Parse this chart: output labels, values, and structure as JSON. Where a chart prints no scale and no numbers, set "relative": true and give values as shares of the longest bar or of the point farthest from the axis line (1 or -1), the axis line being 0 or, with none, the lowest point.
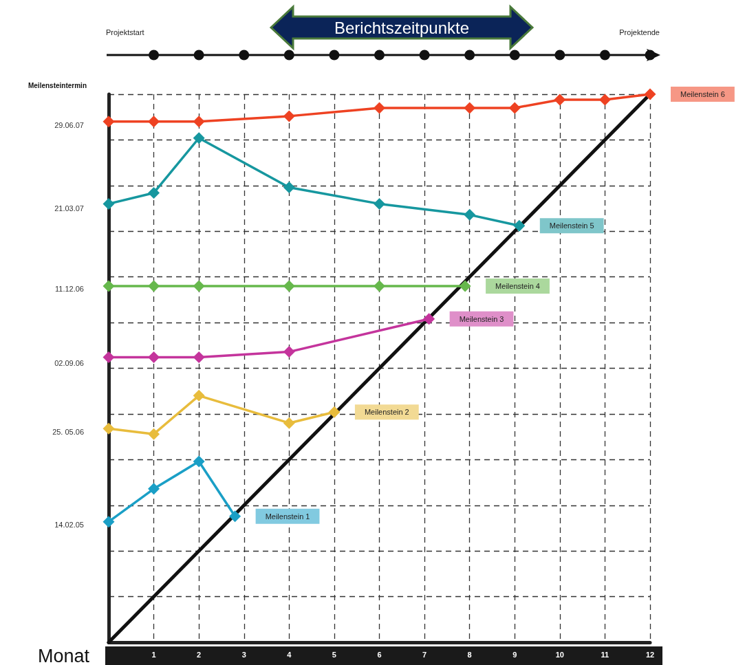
{
  "chart_data": {
    "type": "line",
    "xlabel": "Monat",
    "ylabel": "Meilensteintermin",
    "relative": true,
    "annotations": [
      "Projektstart",
      "Berichtszeitpunkte",
      "Projektende",
      "14.02.05",
      "25. 05.06",
      "02.09.06",
      "11.12.06",
      "21.03.07",
      "29.06.07"
    ],
    "xlim": [
      0,
      12
    ],
    "xticks": [
      {
        "value": 0,
        "label": null
      },
      1,
      2,
      3,
      4,
      5,
      6,
      7,
      8,
      9,
      10,
      11,
      12
    ],
    "grid": true,
    "marker": "diamond",
    "line_style": "solid",
    "series": [
      {
        "type": "line",
        "color": "#111111",
        "x": [
          0,
          12
        ],
        "values": [
          0,
          1
        ],
        "marker": "none"
      },
      {
        "name": "Meilenstein 1",
        "color": "#1a9fc6",
        "x": [
          0,
          1,
          2,
          2.8
        ],
        "values": [
          0.22,
          0.28,
          0.33,
          0.23
        ]
      },
      {
        "name": "Meilenstein 2",
        "color": "#e8bc3c",
        "x": [
          0,
          1,
          2,
          4,
          5
        ],
        "values": [
          0.39,
          0.38,
          0.45,
          0.4,
          0.42
        ]
      },
      {
        "name": "Meilenstein 3",
        "color": "#c4349c",
        "x": [
          0,
          1,
          2,
          4,
          7.1
        ],
        "values": [
          0.52,
          0.52,
          0.52,
          0.53,
          0.59
        ]
      },
      {
        "name": "Meilenstein 4",
        "color": "#66b84c",
        "x": [
          0,
          1,
          2,
          4,
          6,
          7.9
        ],
        "values": [
          0.65,
          0.65,
          0.65,
          0.65,
          0.65,
          0.65
        ]
      },
      {
        "name": "Meilenstein 5",
        "color": "#16979f",
        "x": [
          0,
          1,
          2,
          4,
          6,
          8,
          9.1
        ],
        "values": [
          0.8,
          0.82,
          0.92,
          0.83,
          0.8,
          0.78,
          0.76
        ]
      },
      {
        "name": "Meilenstein 6",
        "color": "#ee4222",
        "x": [
          0,
          1,
          2,
          4,
          6,
          8,
          9,
          10,
          11,
          12
        ],
        "values": [
          0.95,
          0.95,
          0.95,
          0.96,
          0.975,
          0.975,
          0.975,
          0.99,
          0.99,
          1
        ]
      }
    ]
  }
}
